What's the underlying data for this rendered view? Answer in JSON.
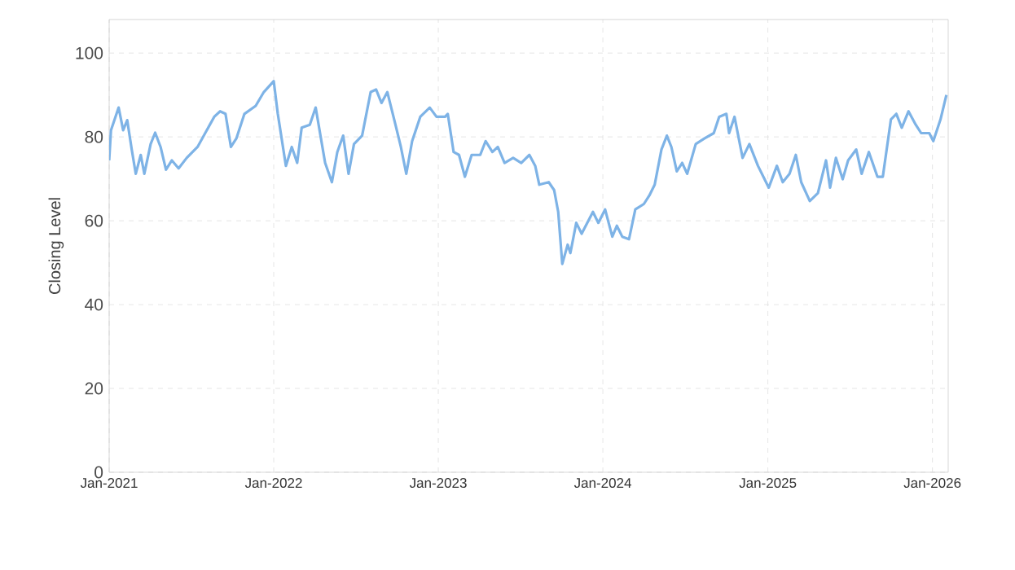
{
  "chart_data": {
    "type": "line",
    "ylabel": "Closing Level",
    "color": "#7eb3e6",
    "grid": true,
    "marker": "none",
    "line_style": "solid",
    "xlim": [
      "2021-01-01",
      "2026-02-05"
    ],
    "ylim": [
      0,
      108
    ],
    "yticks": [
      0,
      20,
      40,
      60,
      80,
      100
    ],
    "xticks": [
      {
        "value": "2021-01-01",
        "label": "Jan-2021"
      },
      {
        "value": "2022-01-01",
        "label": "Jan-2022"
      },
      {
        "value": "2023-01-01",
        "label": "Jan-2023"
      },
      {
        "value": "2024-01-01",
        "label": "Jan-2024"
      },
      {
        "value": "2025-01-01",
        "label": "Jan-2025"
      },
      {
        "value": "2026-01-01",
        "label": "Jan-2026"
      }
    ],
    "x": [
      "2021-01-01",
      "2021-01-05",
      "2021-01-22",
      "2021-02-01",
      "2021-02-10",
      "2021-02-20",
      "2021-03-01",
      "2021-03-12",
      "2021-03-20",
      "2021-04-03",
      "2021-04-13",
      "2021-04-25",
      "2021-05-07",
      "2021-05-20",
      "2021-06-04",
      "2021-06-22",
      "2021-07-16",
      "2021-08-22",
      "2021-09-04",
      "2021-09-16",
      "2021-09-28",
      "2021-10-10",
      "2021-10-28",
      "2021-11-22",
      "2021-12-10",
      "2022-01-01",
      "2022-01-10",
      "2022-01-28",
      "2022-02-10",
      "2022-02-22",
      "2022-03-04",
      "2022-03-22",
      "2022-04-04",
      "2022-04-25",
      "2022-05-10",
      "2022-05-22",
      "2022-06-04",
      "2022-06-16",
      "2022-06-28",
      "2022-07-16",
      "2022-08-04",
      "2022-08-16",
      "2022-08-28",
      "2022-09-10",
      "2022-09-28",
      "2022-10-10",
      "2022-10-22",
      "2022-11-04",
      "2022-11-22",
      "2022-12-13",
      "2022-12-28",
      "2023-01-16",
      "2023-01-22",
      "2023-02-04",
      "2023-02-16",
      "2023-03-01",
      "2023-03-16",
      "2023-04-04",
      "2023-04-16",
      "2023-05-01",
      "2023-05-13",
      "2023-05-28",
      "2023-06-16",
      "2023-07-04",
      "2023-07-22",
      "2023-08-04",
      "2023-08-13",
      "2023-09-03",
      "2023-09-15",
      "2023-09-24",
      "2023-10-03",
      "2023-10-15",
      "2023-10-21",
      "2023-11-03",
      "2023-11-15",
      "2023-12-10",
      "2023-12-22",
      "2024-01-06",
      "2024-01-22",
      "2024-02-01",
      "2024-02-13",
      "2024-02-28",
      "2024-03-13",
      "2024-04-01",
      "2024-04-13",
      "2024-04-25",
      "2024-05-10",
      "2024-05-22",
      "2024-06-01",
      "2024-06-13",
      "2024-06-25",
      "2024-07-06",
      "2024-07-25",
      "2024-08-13",
      "2024-09-03",
      "2024-09-15",
      "2024-10-01",
      "2024-10-07",
      "2024-10-19",
      "2024-11-06",
      "2024-11-21",
      "2024-12-10",
      "2025-01-03",
      "2025-01-21",
      "2025-02-03",
      "2025-02-18",
      "2025-03-04",
      "2025-03-16",
      "2025-04-04",
      "2025-04-22",
      "2025-05-10",
      "2025-05-19",
      "2025-06-01",
      "2025-06-16",
      "2025-06-28",
      "2025-07-16",
      "2025-07-28",
      "2025-08-13",
      "2025-09-01",
      "2025-09-13",
      "2025-10-01",
      "2025-10-13",
      "2025-10-25",
      "2025-11-09",
      "2025-11-25",
      "2025-12-07",
      "2025-12-25",
      "2026-01-03",
      "2026-01-19",
      "2026-02-01"
    ],
    "values": [
      74.4,
      81.6,
      87,
      81.6,
      84,
      77,
      71.2,
      75.7,
      71.2,
      78.3,
      81,
      77.6,
      72.2,
      74.4,
      72.5,
      75,
      77.6,
      84.8,
      86.1,
      85.5,
      77.6,
      79.6,
      85.5,
      87.4,
      90.7,
      93.3,
      85.5,
      73.1,
      77.6,
      73.8,
      82.2,
      82.9,
      87,
      73.8,
      69.2,
      76.4,
      80.3,
      71.2,
      78.3,
      80.3,
      90.7,
      91.3,
      88.1,
      90.7,
      82.9,
      77.6,
      71.2,
      79,
      84.8,
      87,
      84.8,
      84.8,
      85.5,
      76.4,
      75.7,
      70.5,
      75.7,
      75.7,
      79,
      76.4,
      77.6,
      73.8,
      75,
      73.8,
      75.7,
      73.1,
      68.6,
      69.2,
      67.3,
      62.1,
      49.7,
      54.3,
      52.3,
      59.5,
      56.9,
      62.1,
      59.5,
      62.7,
      56.2,
      58.8,
      56.2,
      55.6,
      62.7,
      64,
      66,
      68.6,
      77,
      80.3,
      77.6,
      71.8,
      73.8,
      71.2,
      78.3,
      79.6,
      80.9,
      84.8,
      85.5,
      80.9,
      84.8,
      75,
      78.3,
      73.1,
      67.9,
      73.1,
      69.2,
      71.2,
      75.7,
      69.2,
      64.7,
      66.6,
      74.4,
      67.9,
      75,
      69.9,
      74.4,
      77,
      71.2,
      76.4,
      70.5,
      70.5,
      84.2,
      85.5,
      82.2,
      86.1,
      82.9,
      80.9,
      80.9,
      79,
      84.2,
      90
    ]
  }
}
